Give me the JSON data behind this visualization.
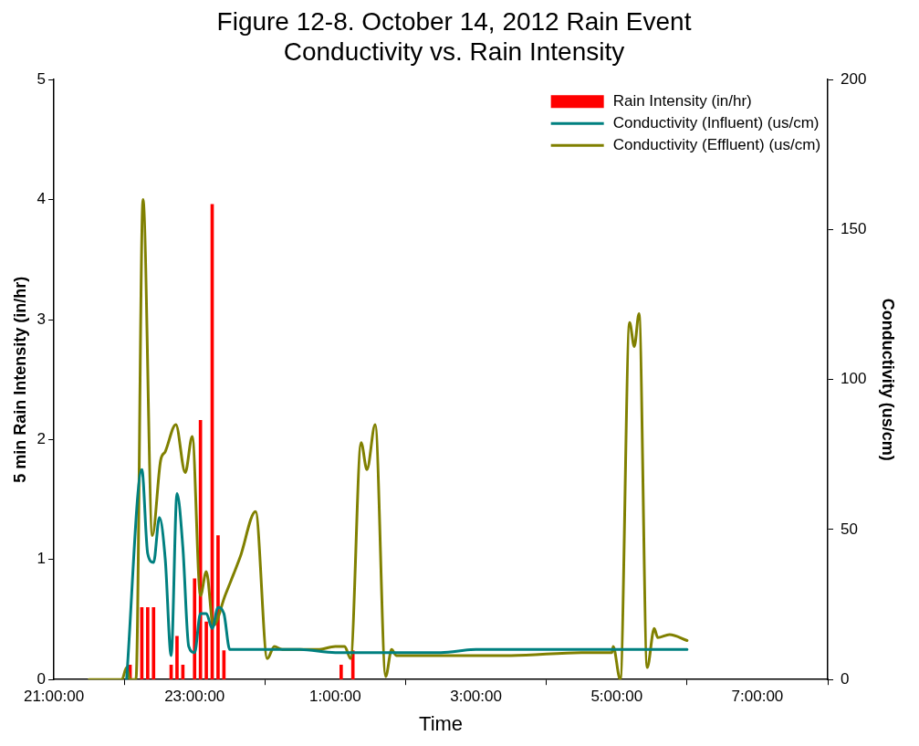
{
  "chart_data": {
    "type": "line",
    "title": "Figure 12-8. October 14, 2012 Rain Event",
    "subtitle": "Conductivity vs. Rain Intensity",
    "xlabel": "Time",
    "ylabel": "5 min Rain Intensity (in/hr)",
    "y2label": "Conductivity (us/cm)",
    "xlim": [
      "2012-10-14T21:00",
      "2012-10-15T08:00"
    ],
    "xticks": [
      {
        "value": "2012-10-14T21:00",
        "label": "21:00:00"
      },
      {
        "value": "2012-10-14T23:00",
        "label": "23:00:00"
      },
      {
        "value": "2012-10-15T01:00",
        "label": "1:00:00"
      },
      {
        "value": "2012-10-15T03:00",
        "label": "3:00:00"
      },
      {
        "value": "2012-10-15T05:00",
        "label": "5:00:00"
      },
      {
        "value": "2012-10-15T07:00",
        "label": "7:00:00"
      }
    ],
    "ylim": [
      0,
      5
    ],
    "yticks": [
      0,
      1,
      2,
      3,
      4,
      5
    ],
    "y2lim": [
      0,
      200
    ],
    "y2ticks": [
      0,
      50,
      100,
      150,
      200
    ],
    "legend": "top right",
    "marker": "none",
    "line_style": "solid",
    "series": [
      {
        "name": "Rain Intensity (in/hr)",
        "type": "bar",
        "axis": "y",
        "color": "#ff0000",
        "x": [
          "2012-10-14T22:05",
          "2012-10-14T22:15",
          "2012-10-14T22:20",
          "2012-10-14T22:25",
          "2012-10-14T22:40",
          "2012-10-14T22:45",
          "2012-10-14T22:50",
          "2012-10-14T23:00",
          "2012-10-14T23:05",
          "2012-10-14T23:10",
          "2012-10-14T23:15",
          "2012-10-14T23:20",
          "2012-10-14T23:25",
          "2012-10-15T01:05",
          "2012-10-15T01:15"
        ],
        "values": [
          0.12,
          0.6,
          0.6,
          0.6,
          0.12,
          0.36,
          0.12,
          0.84,
          2.16,
          0.48,
          3.96,
          1.2,
          0.24,
          0.12,
          0.24
        ]
      },
      {
        "name": "Conductivity (Influent) (us/cm)",
        "axis": "y2",
        "color": "#008080",
        "x": [
          "2012-10-14T22:02",
          "2012-10-14T22:15",
          "2012-10-14T22:20",
          "2012-10-14T22:25",
          "2012-10-14T22:30",
          "2012-10-14T22:35",
          "2012-10-14T22:40",
          "2012-10-14T22:45",
          "2012-10-14T22:50",
          "2012-10-14T22:55",
          "2012-10-14T23:00",
          "2012-10-14T23:05",
          "2012-10-14T23:10",
          "2012-10-14T23:15",
          "2012-10-14T23:20",
          "2012-10-14T23:25",
          "2012-10-14T23:30",
          "2012-10-15T00:00",
          "2012-10-15T00:30",
          "2012-10-15T01:00",
          "2012-10-15T01:30",
          "2012-10-15T02:00",
          "2012-10-15T02:30",
          "2012-10-15T03:00",
          "2012-10-15T03:30",
          "2012-10-15T04:00",
          "2012-10-15T04:30",
          "2012-10-15T05:00",
          "2012-10-15T05:30",
          "2012-10-15T06:00"
        ],
        "values": [
          0,
          70,
          42,
          39,
          54,
          40,
          8,
          62,
          44,
          11,
          9,
          22,
          22,
          17,
          24,
          22,
          10,
          10,
          10,
          9,
          9,
          9,
          9,
          10,
          10,
          10,
          10,
          10,
          10,
          10
        ]
      },
      {
        "name": "Conductivity (Effluent) (us/cm)",
        "axis": "y2",
        "color": "#808000",
        "x": [
          "2012-10-14T21:30",
          "2012-10-14T21:58",
          "2012-10-14T22:02",
          "2012-10-14T22:05",
          "2012-10-14T22:10",
          "2012-10-14T22:16",
          "2012-10-14T22:24",
          "2012-10-14T22:31",
          "2012-10-14T22:35",
          "2012-10-14T22:44",
          "2012-10-14T22:52",
          "2012-10-14T22:58",
          "2012-10-14T23:05",
          "2012-10-14T23:10",
          "2012-10-14T23:16",
          "2012-10-14T23:26",
          "2012-10-14T23:39",
          "2012-10-14T23:52",
          "2012-10-15T00:02",
          "2012-10-15T00:08",
          "2012-10-15T00:15",
          "2012-10-15T00:45",
          "2012-10-15T01:00",
          "2012-10-15T01:08",
          "2012-10-15T01:13",
          "2012-10-15T01:22",
          "2012-10-15T01:27",
          "2012-10-15T01:34",
          "2012-10-15T01:43",
          "2012-10-15T01:48",
          "2012-10-15T01:52",
          "2012-10-15T02:30",
          "2012-10-15T03:30",
          "2012-10-15T04:30",
          "2012-10-15T04:56",
          "2012-10-15T04:57",
          "2012-10-15T05:03",
          "2012-10-15T05:11",
          "2012-10-15T05:15",
          "2012-10-15T05:19",
          "2012-10-15T05:26",
          "2012-10-15T05:32",
          "2012-10-15T05:35",
          "2012-10-15T05:45",
          "2012-10-15T06:00"
        ],
        "values": [
          0,
          0,
          4,
          0,
          0,
          160,
          48,
          73,
          76,
          85,
          69,
          81,
          28,
          36,
          18,
          28,
          41,
          56,
          7,
          11,
          10,
          10,
          11,
          11,
          7,
          79,
          70,
          85,
          1,
          10,
          8,
          8,
          8,
          9,
          9,
          11,
          0,
          119,
          111,
          122,
          4,
          17,
          14,
          15,
          13
        ]
      }
    ]
  }
}
